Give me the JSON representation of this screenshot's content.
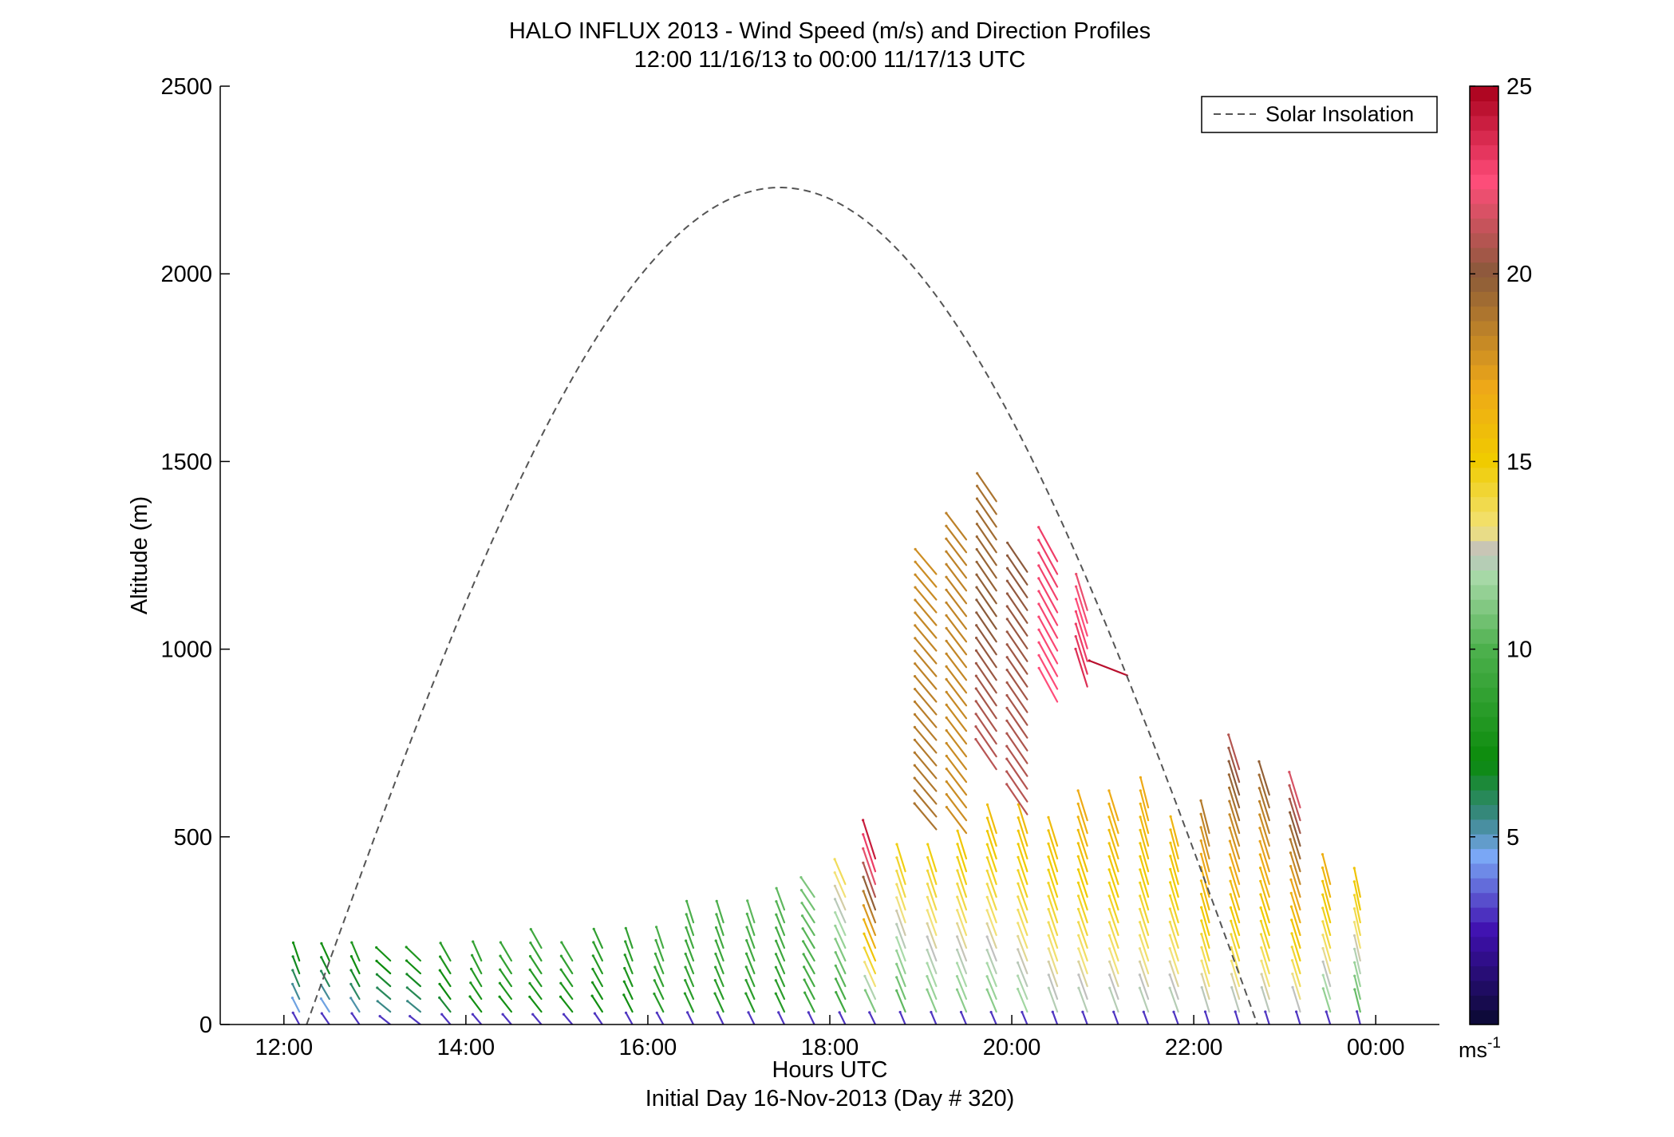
{
  "chart_data": {
    "type": "wind-barb-profile",
    "title": "HALO INFLUX 2013 - Wind Speed (m/s) and Direction Profiles",
    "subtitle": "12:00 11/16/13 to 00:00 11/17/13  UTC",
    "xlabel": "Hours UTC",
    "xlabel2": "Initial Day 16-Nov-2013 (Day # 320)",
    "ylabel": "Altitude (m)",
    "xlim": [
      11.3,
      24.7
    ],
    "ylim": [
      0,
      2500
    ],
    "xticks": [
      12,
      14,
      16,
      18,
      20,
      22,
      24
    ],
    "xtick_labels": [
      "12:00",
      "14:00",
      "16:00",
      "18:00",
      "20:00",
      "22:00",
      "00:00"
    ],
    "yticks": [
      0,
      500,
      1000,
      1500,
      2000,
      2500
    ],
    "ytick_labels": [
      "0",
      "500",
      "1000",
      "1500",
      "2000",
      "2500"
    ],
    "grid": false,
    "legend": {
      "position": "top-right",
      "entries": [
        "Solar Insolation"
      ]
    },
    "colorbar": {
      "range": [
        0,
        25
      ],
      "ticks": [
        5,
        10,
        15,
        20,
        25
      ],
      "tick_labels": [
        "5",
        "10",
        "15",
        "20",
        "25"
      ],
      "unit_base": "ms",
      "unit_exp": "-1",
      "stops": [
        {
          "v": 0,
          "c": "#0a0a30"
        },
        {
          "v": 2.5,
          "c": "#4010b0"
        },
        {
          "v": 4.5,
          "c": "#7aa8f5"
        },
        {
          "v": 5.5,
          "c": "#3a8888"
        },
        {
          "v": 7,
          "c": "#0a8a0a"
        },
        {
          "v": 10,
          "c": "#4db04d"
        },
        {
          "v": 12,
          "c": "#aadaaa"
        },
        {
          "v": 12.6,
          "c": "#c0c0c0"
        },
        {
          "v": 13.2,
          "c": "#f2e27a"
        },
        {
          "v": 15,
          "c": "#f0cc00"
        },
        {
          "v": 17,
          "c": "#eea818"
        },
        {
          "v": 20,
          "c": "#8a5a3a"
        },
        {
          "v": 22.5,
          "c": "#ff4d7a"
        },
        {
          "v": 25,
          "c": "#a8001a"
        }
      ]
    },
    "solar_insolation": {
      "name": "Solar Insolation",
      "start_hour": 12.25,
      "end_hour": 22.7,
      "peak_hour": 17.45,
      "peak_altitude": 2230,
      "style": "dashed",
      "color": "#555555"
    },
    "profiles": [
      {
        "t": 12.17,
        "top": 200,
        "sp_low": 4,
        "sp_high": 8,
        "dir_low": 0.5,
        "dir_high": 0.3
      },
      {
        "t": 12.5,
        "top": 200,
        "sp_low": 4,
        "sp_high": 8,
        "dir_low": 0.6,
        "dir_high": 0.4
      },
      {
        "t": 12.83,
        "top": 170,
        "sp_low": 4.5,
        "sp_high": 8,
        "dir_low": 0.6,
        "dir_high": 0.4
      },
      {
        "t": 13.17,
        "top": 200,
        "sp_low": 5,
        "sp_high": 8,
        "dir_low": 0.9,
        "dir_high": 0.8
      },
      {
        "t": 13.5,
        "top": 180,
        "sp_low": 5,
        "sp_high": 8,
        "dir_low": 0.9,
        "dir_high": 0.8
      },
      {
        "t": 13.83,
        "top": 180,
        "sp_low": 6,
        "sp_high": 8.5,
        "dir_low": 0.7,
        "dir_high": 0.5
      },
      {
        "t": 14.17,
        "top": 180,
        "sp_low": 7,
        "sp_high": 9,
        "dir_low": 0.7,
        "dir_high": 0.4
      },
      {
        "t": 14.5,
        "top": 200,
        "sp_low": 7,
        "sp_high": 9.5,
        "dir_low": 0.7,
        "dir_high": 0.5
      },
      {
        "t": 14.83,
        "top": 220,
        "sp_low": 7,
        "sp_high": 9.5,
        "dir_low": 0.7,
        "dir_high": 0.5
      },
      {
        "t": 15.17,
        "top": 200,
        "sp_low": 7,
        "sp_high": 9.5,
        "dir_low": 0.7,
        "dir_high": 0.5
      },
      {
        "t": 15.5,
        "top": 230,
        "sp_low": 7,
        "sp_high": 9,
        "dir_low": 0.6,
        "dir_high": 0.4
      },
      {
        "t": 15.83,
        "top": 230,
        "sp_low": 7,
        "sp_high": 9,
        "dir_low": 0.5,
        "dir_high": 0.3
      },
      {
        "t": 16.17,
        "top": 230,
        "sp_low": 8,
        "sp_high": 10,
        "dir_low": 0.5,
        "dir_high": 0.3
      },
      {
        "t": 16.5,
        "top": 280,
        "sp_low": 8,
        "sp_high": 10,
        "dir_low": 0.45,
        "dir_high": 0.3
      },
      {
        "t": 16.83,
        "top": 280,
        "sp_low": 8,
        "sp_high": 10,
        "dir_low": 0.45,
        "dir_high": 0.3
      },
      {
        "t": 17.17,
        "top": 290,
        "sp_low": 8,
        "sp_high": 10.5,
        "dir_low": 0.45,
        "dir_high": 0.3
      },
      {
        "t": 17.5,
        "top": 320,
        "sp_low": 8,
        "sp_high": 10.5,
        "dir_low": 0.45,
        "dir_high": 0.35
      },
      {
        "t": 17.83,
        "top": 340,
        "sp_low": 9,
        "sp_high": 11,
        "dir_low": 0.45,
        "dir_high": 0.6
      },
      {
        "t": 18.17,
        "top": 400,
        "sp_low": 9,
        "sp_high": 14,
        "dir_low": 0.45,
        "dir_high": 0.4
      },
      {
        "t": 18.5,
        "top": 470,
        "sp_low": 10,
        "sp_high": 25,
        "dir_low": 0.45,
        "dir_high": 0.3
      },
      {
        "t": 18.83,
        "top": 430,
        "sp_low": 10,
        "sp_high": 15,
        "dir_low": 0.4,
        "dir_high": 0.3
      },
      {
        "t": 19.17,
        "top": 430,
        "sp_low": 11,
        "sp_high": 15,
        "dir_low": 0.4,
        "dir_high": 0.3
      },
      {
        "t": 19.5,
        "top": 460,
        "sp_low": 11,
        "sp_high": 15.5,
        "dir_low": 0.4,
        "dir_high": 0.3
      },
      {
        "t": 19.83,
        "top": 530,
        "sp_low": 11,
        "sp_high": 16,
        "dir_low": 0.4,
        "dir_high": 0.3
      },
      {
        "t": 20.17,
        "top": 510,
        "sp_low": 11.5,
        "sp_high": 16,
        "dir_low": 0.4,
        "dir_high": 0.3
      },
      {
        "t": 20.5,
        "top": 490,
        "sp_low": 12,
        "sp_high": 16,
        "dir_low": 0.35,
        "dir_high": 0.3
      },
      {
        "t": 20.83,
        "top": 560,
        "sp_low": 12,
        "sp_high": 17,
        "dir_low": 0.35,
        "dir_high": 0.3
      },
      {
        "t": 21.17,
        "top": 560,
        "sp_low": 12,
        "sp_high": 17,
        "dir_low": 0.35,
        "dir_high": 0.3
      },
      {
        "t": 21.5,
        "top": 590,
        "sp_low": 12,
        "sp_high": 17,
        "dir_low": 0.35,
        "dir_high": 0.25
      },
      {
        "t": 21.83,
        "top": 500,
        "sp_low": 12,
        "sp_high": 16.5,
        "dir_low": 0.35,
        "dir_high": 0.25
      },
      {
        "t": 22.17,
        "top": 530,
        "sp_low": 12,
        "sp_high": 19,
        "dir_low": 0.3,
        "dir_high": 0.25
      },
      {
        "t": 22.5,
        "top": 690,
        "sp_low": 12,
        "sp_high": 21,
        "dir_low": 0.3,
        "dir_high": 0.3
      },
      {
        "t": 22.83,
        "top": 630,
        "sp_low": 12,
        "sp_high": 20,
        "dir_low": 0.3,
        "dir_high": 0.3
      },
      {
        "t": 23.17,
        "top": 600,
        "sp_low": 12,
        "sp_high": 22,
        "dir_low": 0.3,
        "dir_high": 0.3
      },
      {
        "t": 23.5,
        "top": 400,
        "sp_low": 11,
        "sp_high": 17,
        "dir_low": 0.3,
        "dir_high": 0.25
      },
      {
        "t": 23.83,
        "top": 370,
        "sp_low": 10,
        "sp_high": 16,
        "dir_low": 0.25,
        "dir_high": 0.2
      }
    ],
    "upper_profiles": [
      {
        "t": 19.17,
        "bottom": 520,
        "top": 1200,
        "sp_low": 19,
        "sp_high": 18,
        "dir": 0.7
      },
      {
        "t": 19.5,
        "bottom": 510,
        "top": 1300,
        "sp_low": 18,
        "sp_high": 18.5,
        "dir": 0.65
      },
      {
        "t": 19.83,
        "bottom": 680,
        "top": 1400,
        "sp_low": 21,
        "sp_high": 19,
        "dir": 0.6
      },
      {
        "t": 20.17,
        "bottom": 560,
        "top": 1230,
        "sp_low": 21,
        "sp_high": 20,
        "dir": 0.6
      },
      {
        "t": 20.5,
        "bottom": 860,
        "top": 1240,
        "sp_low": 22.5,
        "sp_high": 23,
        "dir": 0.5
      },
      {
        "t": 20.83,
        "bottom": 900,
        "top": 1110,
        "sp_low": 23.5,
        "sp_high": 22,
        "dir": 0.3
      }
    ],
    "extra_barbs": [
      {
        "t": 21.27,
        "y": 930,
        "sp": 24.5,
        "dir": 1.2
      }
    ]
  }
}
